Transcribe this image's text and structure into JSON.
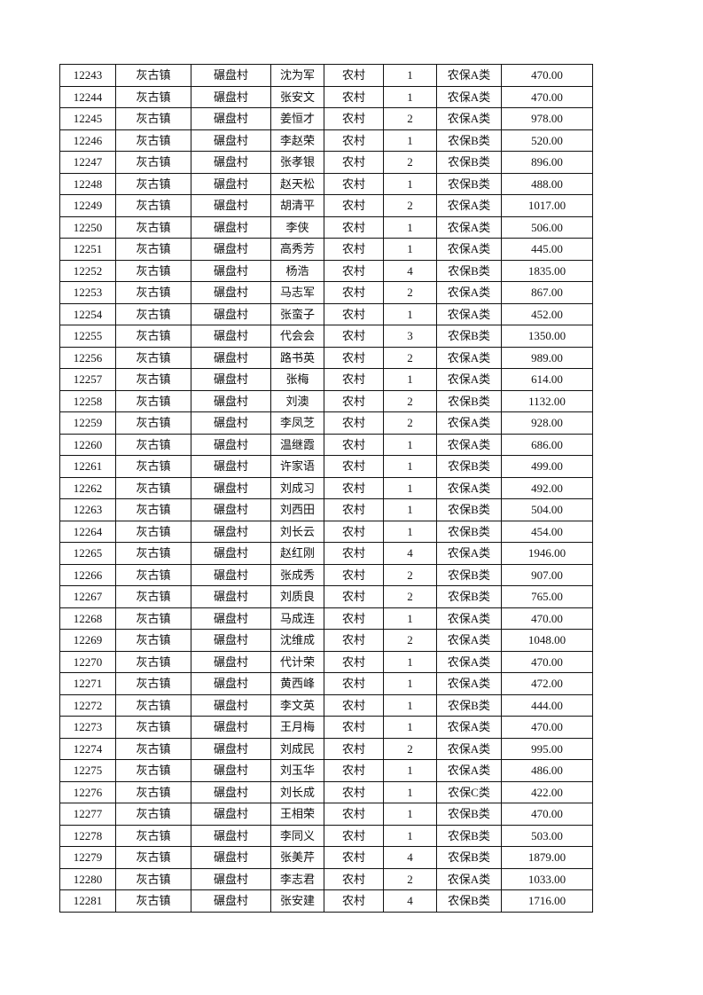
{
  "table": {
    "rows": [
      [
        "12243",
        "灰古镇",
        "碾盘村",
        "沈为军",
        "农村",
        "1",
        "农保A类",
        "470.00"
      ],
      [
        "12244",
        "灰古镇",
        "碾盘村",
        "张安文",
        "农村",
        "1",
        "农保A类",
        "470.00"
      ],
      [
        "12245",
        "灰古镇",
        "碾盘村",
        "姜恒才",
        "农村",
        "2",
        "农保A类",
        "978.00"
      ],
      [
        "12246",
        "灰古镇",
        "碾盘村",
        "李赵荣",
        "农村",
        "1",
        "农保B类",
        "520.00"
      ],
      [
        "12247",
        "灰古镇",
        "碾盘村",
        "张孝银",
        "农村",
        "2",
        "农保B类",
        "896.00"
      ],
      [
        "12248",
        "灰古镇",
        "碾盘村",
        "赵天松",
        "农村",
        "1",
        "农保B类",
        "488.00"
      ],
      [
        "12249",
        "灰古镇",
        "碾盘村",
        "胡清平",
        "农村",
        "2",
        "农保A类",
        "1017.00"
      ],
      [
        "12250",
        "灰古镇",
        "碾盘村",
        "李侠",
        "农村",
        "1",
        "农保A类",
        "506.00"
      ],
      [
        "12251",
        "灰古镇",
        "碾盘村",
        "高秀芳",
        "农村",
        "1",
        "农保A类",
        "445.00"
      ],
      [
        "12252",
        "灰古镇",
        "碾盘村",
        "杨浩",
        "农村",
        "4",
        "农保B类",
        "1835.00"
      ],
      [
        "12253",
        "灰古镇",
        "碾盘村",
        "马志军",
        "农村",
        "2",
        "农保A类",
        "867.00"
      ],
      [
        "12254",
        "灰古镇",
        "碾盘村",
        "张蛮子",
        "农村",
        "1",
        "农保A类",
        "452.00"
      ],
      [
        "12255",
        "灰古镇",
        "碾盘村",
        "代会会",
        "农村",
        "3",
        "农保B类",
        "1350.00"
      ],
      [
        "12256",
        "灰古镇",
        "碾盘村",
        "路书英",
        "农村",
        "2",
        "农保A类",
        "989.00"
      ],
      [
        "12257",
        "灰古镇",
        "碾盘村",
        "张梅",
        "农村",
        "1",
        "农保A类",
        "614.00"
      ],
      [
        "12258",
        "灰古镇",
        "碾盘村",
        "刘澳",
        "农村",
        "2",
        "农保B类",
        "1132.00"
      ],
      [
        "12259",
        "灰古镇",
        "碾盘村",
        "李凤芝",
        "农村",
        "2",
        "农保A类",
        "928.00"
      ],
      [
        "12260",
        "灰古镇",
        "碾盘村",
        "温继霞",
        "农村",
        "1",
        "农保A类",
        "686.00"
      ],
      [
        "12261",
        "灰古镇",
        "碾盘村",
        "许家语",
        "农村",
        "1",
        "农保B类",
        "499.00"
      ],
      [
        "12262",
        "灰古镇",
        "碾盘村",
        "刘成习",
        "农村",
        "1",
        "农保A类",
        "492.00"
      ],
      [
        "12263",
        "灰古镇",
        "碾盘村",
        "刘西田",
        "农村",
        "1",
        "农保B类",
        "504.00"
      ],
      [
        "12264",
        "灰古镇",
        "碾盘村",
        "刘长云",
        "农村",
        "1",
        "农保B类",
        "454.00"
      ],
      [
        "12265",
        "灰古镇",
        "碾盘村",
        "赵红刚",
        "农村",
        "4",
        "农保A类",
        "1946.00"
      ],
      [
        "12266",
        "灰古镇",
        "碾盘村",
        "张成秀",
        "农村",
        "2",
        "农保B类",
        "907.00"
      ],
      [
        "12267",
        "灰古镇",
        "碾盘村",
        "刘质良",
        "农村",
        "2",
        "农保B类",
        "765.00"
      ],
      [
        "12268",
        "灰古镇",
        "碾盘村",
        "马成连",
        "农村",
        "1",
        "农保A类",
        "470.00"
      ],
      [
        "12269",
        "灰古镇",
        "碾盘村",
        "沈维成",
        "农村",
        "2",
        "农保A类",
        "1048.00"
      ],
      [
        "12270",
        "灰古镇",
        "碾盘村",
        "代计荣",
        "农村",
        "1",
        "农保A类",
        "470.00"
      ],
      [
        "12271",
        "灰古镇",
        "碾盘村",
        "黄西峰",
        "农村",
        "1",
        "农保A类",
        "472.00"
      ],
      [
        "12272",
        "灰古镇",
        "碾盘村",
        "李文英",
        "农村",
        "1",
        "农保B类",
        "444.00"
      ],
      [
        "12273",
        "灰古镇",
        "碾盘村",
        "王月梅",
        "农村",
        "1",
        "农保A类",
        "470.00"
      ],
      [
        "12274",
        "灰古镇",
        "碾盘村",
        "刘成民",
        "农村",
        "2",
        "农保A类",
        "995.00"
      ],
      [
        "12275",
        "灰古镇",
        "碾盘村",
        "刘玉华",
        "农村",
        "1",
        "农保A类",
        "486.00"
      ],
      [
        "12276",
        "灰古镇",
        "碾盘村",
        "刘长成",
        "农村",
        "1",
        "农保C类",
        "422.00"
      ],
      [
        "12277",
        "灰古镇",
        "碾盘村",
        "王相荣",
        "农村",
        "1",
        "农保B类",
        "470.00"
      ],
      [
        "12278",
        "灰古镇",
        "碾盘村",
        "李同义",
        "农村",
        "1",
        "农保B类",
        "503.00"
      ],
      [
        "12279",
        "灰古镇",
        "碾盘村",
        "张美芹",
        "农村",
        "4",
        "农保B类",
        "1879.00"
      ],
      [
        "12280",
        "灰古镇",
        "碾盘村",
        "李志君",
        "农村",
        "2",
        "农保A类",
        "1033.00"
      ],
      [
        "12281",
        "灰古镇",
        "碾盘村",
        "张安建",
        "农村",
        "4",
        "农保B类",
        "1716.00"
      ]
    ]
  }
}
